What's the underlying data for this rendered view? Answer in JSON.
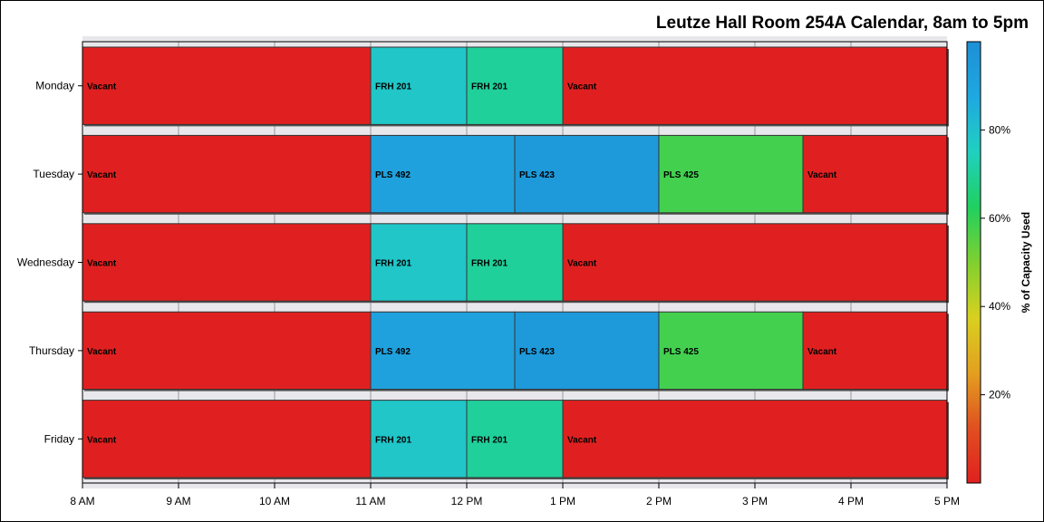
{
  "title": "Leutze Hall Room 254A Calendar, 8am to 5pm",
  "chart_data": {
    "type": "bar",
    "subtype": "gantt",
    "title": "Leutze Hall Room 254A Calendar, 8am to 5pm",
    "x_ticks": [
      "8 AM",
      "9 AM",
      "10 AM",
      "11 AM",
      "12 PM",
      "1 PM",
      "2 PM",
      "3 PM",
      "4 PM",
      "5 PM"
    ],
    "xlim": [
      8,
      17
    ],
    "days": [
      {
        "day": "Monday",
        "segments": [
          {
            "label": "Vacant",
            "start": 8,
            "end": 11,
            "capacity_pct": 0
          },
          {
            "label": "FRH 201",
            "start": 11,
            "end": 12,
            "capacity_pct": 78
          },
          {
            "label": "FRH 201",
            "start": 12,
            "end": 13,
            "capacity_pct": 70
          },
          {
            "label": "Vacant",
            "start": 13,
            "end": 17,
            "capacity_pct": 0
          }
        ]
      },
      {
        "day": "Tuesday",
        "segments": [
          {
            "label": "Vacant",
            "start": 8,
            "end": 11,
            "capacity_pct": 0
          },
          {
            "label": "PLS 492",
            "start": 11,
            "end": 12.5,
            "capacity_pct": 91
          },
          {
            "label": "PLS 423",
            "start": 12.5,
            "end": 14,
            "capacity_pct": 95
          },
          {
            "label": "PLS 425",
            "start": 14,
            "end": 15.5,
            "capacity_pct": 58
          },
          {
            "label": "Vacant",
            "start": 15.5,
            "end": 17,
            "capacity_pct": 0
          }
        ]
      },
      {
        "day": "Wednesday",
        "segments": [
          {
            "label": "Vacant",
            "start": 8,
            "end": 11,
            "capacity_pct": 0
          },
          {
            "label": "FRH 201",
            "start": 11,
            "end": 12,
            "capacity_pct": 78
          },
          {
            "label": "FRH 201",
            "start": 12,
            "end": 13,
            "capacity_pct": 70
          },
          {
            "label": "Vacant",
            "start": 13,
            "end": 17,
            "capacity_pct": 0
          }
        ]
      },
      {
        "day": "Thursday",
        "segments": [
          {
            "label": "Vacant",
            "start": 8,
            "end": 11,
            "capacity_pct": 0
          },
          {
            "label": "PLS 492",
            "start": 11,
            "end": 12.5,
            "capacity_pct": 91
          },
          {
            "label": "PLS 423",
            "start": 12.5,
            "end": 14,
            "capacity_pct": 95
          },
          {
            "label": "PLS 425",
            "start": 14,
            "end": 15.5,
            "capacity_pct": 58
          },
          {
            "label": "Vacant",
            "start": 15.5,
            "end": 17,
            "capacity_pct": 0
          }
        ]
      },
      {
        "day": "Friday",
        "segments": [
          {
            "label": "Vacant",
            "start": 8,
            "end": 11,
            "capacity_pct": 0
          },
          {
            "label": "FRH 201",
            "start": 11,
            "end": 12,
            "capacity_pct": 78
          },
          {
            "label": "FRH 201",
            "start": 12,
            "end": 13,
            "capacity_pct": 70
          },
          {
            "label": "Vacant",
            "start": 13,
            "end": 17,
            "capacity_pct": 0
          }
        ]
      }
    ],
    "colorbar": {
      "label": "% of Capacity Used",
      "ticks": [
        {
          "value": 20,
          "label": "20%"
        },
        {
          "value": 40,
          "label": "40%"
        },
        {
          "value": 60,
          "label": "60%"
        },
        {
          "value": 80,
          "label": "80%"
        }
      ],
      "range": [
        0,
        100
      ],
      "colors": [
        "#e02020",
        "#e05020",
        "#e2a020",
        "#d8d020",
        "#80d030",
        "#20d060",
        "#20d0c0",
        "#1fa8e0",
        "#1e8fd6"
      ]
    },
    "grid": true,
    "legend_position": "right"
  }
}
